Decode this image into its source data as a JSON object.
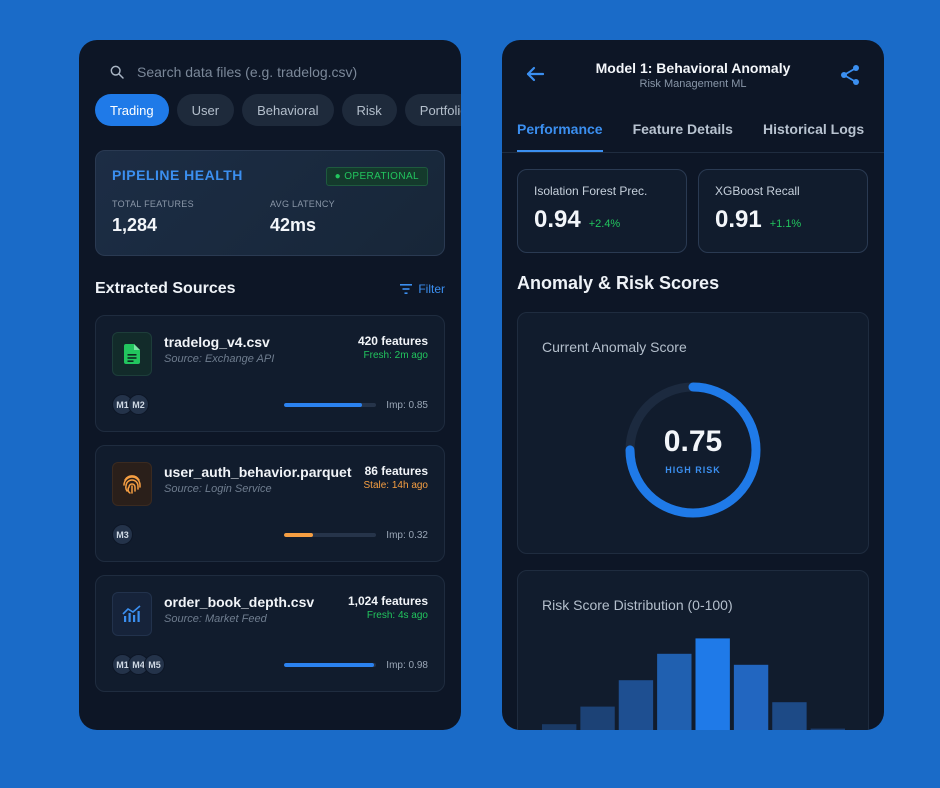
{
  "left": {
    "search": {
      "placeholder": "Search data files (e.g. tradelog.csv)"
    },
    "chips": [
      {
        "label": "Trading",
        "active": true
      },
      {
        "label": "User",
        "active": false
      },
      {
        "label": "Behavioral",
        "active": false
      },
      {
        "label": "Risk",
        "active": false
      },
      {
        "label": "Portfolio",
        "active": false
      }
    ],
    "health": {
      "title": "PIPELINE HEALTH",
      "badge": "● OPERATIONAL",
      "total_features_label": "TOTAL FEATURES",
      "total_features_value": "1,284",
      "avg_latency_label": "AVG LATENCY",
      "avg_latency_value": "42ms"
    },
    "section_title": "Extracted Sources",
    "filter_label": "Filter",
    "sources": [
      {
        "name": "tradelog_v4.csv",
        "source": "Source: Exchange API",
        "features": "420 features",
        "freshness": "Fresh: 2m ago",
        "freshness_color": "#22c55e",
        "icon": "document-icon",
        "importance": 0.85,
        "imp_label": "Imp: 0.85",
        "bar_color": "#2b82f0",
        "avatars": [
          "M1",
          "M2"
        ]
      },
      {
        "name": "user_auth_behavior.parquet",
        "source": "Source: Login Service",
        "features": "86 features",
        "freshness": "Stale: 14h ago",
        "freshness_color": "#f59e42",
        "icon": "fingerprint-icon",
        "importance": 0.32,
        "imp_label": "Imp: 0.32",
        "bar_color": "#f59e42",
        "avatars": [
          "M3"
        ]
      },
      {
        "name": "order_book_depth.csv",
        "source": "Source: Market Feed",
        "features": "1,024 features",
        "freshness": "Fresh: 4s ago",
        "freshness_color": "#22c55e",
        "icon": "chart-icon",
        "importance": 0.98,
        "imp_label": "Imp: 0.98",
        "bar_color": "#2b82f0",
        "avatars": [
          "M1",
          "M4",
          "M5"
        ]
      }
    ]
  },
  "right": {
    "title": "Model 1: Behavioral Anomaly",
    "subtitle": "Risk Management ML",
    "tabs": [
      {
        "label": "Performance",
        "active": true
      },
      {
        "label": "Feature Details",
        "active": false
      },
      {
        "label": "Historical Logs",
        "active": false
      }
    ],
    "kpis": [
      {
        "label": "Isolation Forest Prec.",
        "value": "0.94",
        "delta": "+2.4%"
      },
      {
        "label": "XGBoost Recall",
        "value": "0.91",
        "delta": "+1.1%"
      }
    ],
    "scores_title": "Anomaly & Risk Scores",
    "gauge": {
      "label": "Current Anomaly Score",
      "value": "0.75",
      "score": 0.75,
      "status": "HIGH RISK"
    },
    "distribution": {
      "label": "Risk Score Distribution (0-100)",
      "values": [
        18,
        34,
        58,
        82,
        96,
        72,
        38,
        14
      ]
    }
  }
}
